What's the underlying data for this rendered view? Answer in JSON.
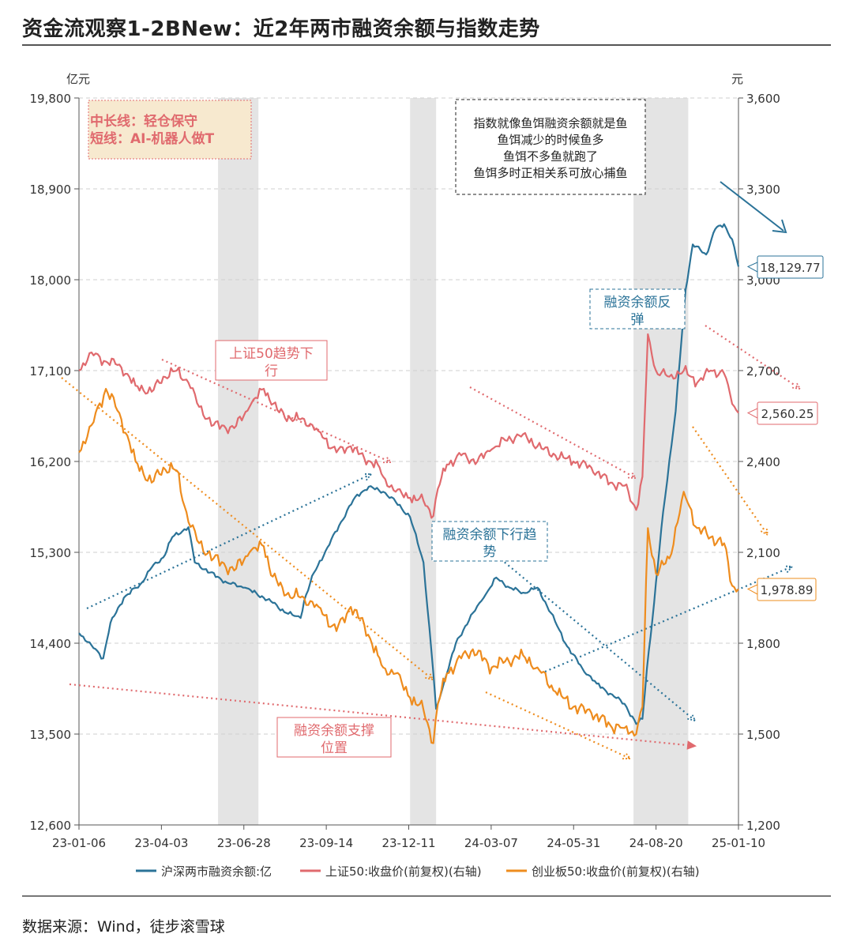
{
  "title": "资金流观察1-2BNew：近2年两市融资余额与指数走势",
  "source": "数据来源：Wind，徒步滚雪球",
  "chart_data": {
    "type": "line",
    "left_axis_unit": "亿元",
    "right_axis_unit": "元",
    "left_ylim": [
      12600,
      19800
    ],
    "left_ticks": [
      "12,600",
      "13,500",
      "14,400",
      "15,300",
      "16,200",
      "17,100",
      "18,000",
      "18,900",
      "19,800"
    ],
    "right_ylim": [
      1200,
      3600
    ],
    "right_ticks": [
      "1,200",
      "1,500",
      "1,800",
      "2,100",
      "2,400",
      "2,700",
      "3,000",
      "3,300",
      "3,600"
    ],
    "x_ticks": [
      "23-01-06",
      "23-04-03",
      "23-06-28",
      "23-09-14",
      "23-12-11",
      "24-03-07",
      "24-05-31",
      "24-08-20",
      "25-01-10"
    ],
    "shaded_periods": [
      [
        "2023-06-10",
        "2023-07-25"
      ],
      [
        "2024-01-10",
        "2024-02-08"
      ],
      [
        "2024-09-15",
        "2024-11-15"
      ]
    ],
    "series": [
      {
        "name": "沪深两市融资余额:亿",
        "axis": "left",
        "color": "#2b7398",
        "points": [
          [
            "2023-01-06",
            14500
          ],
          [
            "2023-01-20",
            14380
          ],
          [
            "2023-02-02",
            14250
          ],
          [
            "2023-02-10",
            14600
          ],
          [
            "2023-02-25",
            14850
          ],
          [
            "2023-03-15",
            14980
          ],
          [
            "2023-03-28",
            15150
          ],
          [
            "2023-04-10",
            15250
          ],
          [
            "2023-04-20",
            15450
          ],
          [
            "2023-05-08",
            15550
          ],
          [
            "2023-05-15",
            15200
          ],
          [
            "2023-06-01",
            15100
          ],
          [
            "2023-06-20",
            15000
          ],
          [
            "2023-07-10",
            14950
          ],
          [
            "2023-07-31",
            14850
          ],
          [
            "2023-08-10",
            14800
          ],
          [
            "2023-08-25",
            14700
          ],
          [
            "2023-09-10",
            14650
          ],
          [
            "2023-09-14",
            14820
          ],
          [
            "2023-09-25",
            15100
          ],
          [
            "2023-10-10",
            15350
          ],
          [
            "2023-10-25",
            15600
          ],
          [
            "2023-11-10",
            15850
          ],
          [
            "2023-11-25",
            15950
          ],
          [
            "2023-12-11",
            15900
          ],
          [
            "2023-12-25",
            15800
          ],
          [
            "2024-01-10",
            15650
          ],
          [
            "2024-01-25",
            15200
          ],
          [
            "2024-02-05",
            14100
          ],
          [
            "2024-02-08",
            13750
          ],
          [
            "2024-02-20",
            14100
          ],
          [
            "2024-03-01",
            14400
          ],
          [
            "2024-03-20",
            14700
          ],
          [
            "2024-04-01",
            14850
          ],
          [
            "2024-04-15",
            15050
          ],
          [
            "2024-04-30",
            14950
          ],
          [
            "2024-05-15",
            14900
          ],
          [
            "2024-05-31",
            14950
          ],
          [
            "2024-06-15",
            14700
          ],
          [
            "2024-07-01",
            14400
          ],
          [
            "2024-07-20",
            14150
          ],
          [
            "2024-08-05",
            14000
          ],
          [
            "2024-08-20",
            13900
          ],
          [
            "2024-09-05",
            13800
          ],
          [
            "2024-09-18",
            13600
          ],
          [
            "2024-09-25",
            13650
          ],
          [
            "2024-09-30",
            14150
          ],
          [
            "2024-10-08",
            14800
          ],
          [
            "2024-10-18",
            15700
          ],
          [
            "2024-11-01",
            16700
          ],
          [
            "2024-11-12",
            17900
          ],
          [
            "2024-11-20",
            18350
          ],
          [
            "2024-12-05",
            18250
          ],
          [
            "2024-12-15",
            18500
          ],
          [
            "2024-12-25",
            18550
          ],
          [
            "2025-01-03",
            18400
          ],
          [
            "2025-01-10",
            18129.77
          ]
        ],
        "last_label": "18,129.77"
      },
      {
        "name": "上证50:收盘价(前复权)(右轴)",
        "axis": "right",
        "color": "#e06a6e",
        "points": [
          [
            "2023-01-06",
            2700
          ],
          [
            "2023-01-20",
            2760
          ],
          [
            "2023-02-05",
            2730
          ],
          [
            "2023-02-20",
            2720
          ],
          [
            "2023-03-10",
            2650
          ],
          [
            "2023-03-28",
            2630
          ],
          [
            "2023-04-10",
            2680
          ],
          [
            "2023-04-25",
            2700
          ],
          [
            "2023-05-08",
            2660
          ],
          [
            "2023-05-20",
            2580
          ],
          [
            "2023-06-05",
            2520
          ],
          [
            "2023-06-28",
            2510
          ],
          [
            "2023-07-15",
            2580
          ],
          [
            "2023-07-31",
            2640
          ],
          [
            "2023-08-15",
            2570
          ],
          [
            "2023-08-30",
            2540
          ],
          [
            "2023-09-14",
            2540
          ],
          [
            "2023-09-30",
            2500
          ],
          [
            "2023-10-20",
            2430
          ],
          [
            "2023-11-05",
            2450
          ],
          [
            "2023-11-20",
            2410
          ],
          [
            "2023-12-05",
            2390
          ],
          [
            "2023-12-11",
            2350
          ],
          [
            "2023-12-25",
            2300
          ],
          [
            "2024-01-10",
            2280
          ],
          [
            "2024-01-25",
            2270
          ],
          [
            "2024-02-05",
            2220
          ],
          [
            "2024-02-10",
            2310
          ],
          [
            "2024-02-20",
            2390
          ],
          [
            "2024-03-07",
            2420
          ],
          [
            "2024-03-25",
            2400
          ],
          [
            "2024-04-10",
            2440
          ],
          [
            "2024-04-25",
            2470
          ],
          [
            "2024-05-15",
            2490
          ],
          [
            "2024-05-31",
            2450
          ],
          [
            "2024-06-20",
            2420
          ],
          [
            "2024-07-10",
            2400
          ],
          [
            "2024-07-30",
            2380
          ],
          [
            "2024-08-20",
            2330
          ],
          [
            "2024-09-05",
            2320
          ],
          [
            "2024-09-18",
            2240
          ],
          [
            "2024-09-25",
            2350
          ],
          [
            "2024-10-01",
            2820
          ],
          [
            "2024-10-10",
            2700
          ],
          [
            "2024-10-25",
            2680
          ],
          [
            "2024-11-10",
            2700
          ],
          [
            "2024-11-25",
            2660
          ],
          [
            "2024-12-10",
            2700
          ],
          [
            "2024-12-25",
            2690
          ],
          [
            "2025-01-03",
            2590
          ],
          [
            "2025-01-10",
            2560.25
          ]
        ],
        "last_label": "2,560.25"
      },
      {
        "name": "创业板50:收盘价(前复权)(右轴)",
        "axis": "right",
        "color": "#ee8c1e",
        "points": [
          [
            "2023-01-06",
            2430
          ],
          [
            "2023-01-20",
            2520
          ],
          [
            "2023-02-05",
            2640
          ],
          [
            "2023-02-20",
            2560
          ],
          [
            "2023-03-10",
            2400
          ],
          [
            "2023-03-28",
            2330
          ],
          [
            "2023-04-10",
            2380
          ],
          [
            "2023-04-25",
            2370
          ],
          [
            "2023-05-08",
            2200
          ],
          [
            "2023-05-20",
            2130
          ],
          [
            "2023-06-05",
            2080
          ],
          [
            "2023-06-28",
            2040
          ],
          [
            "2023-07-15",
            2100
          ],
          [
            "2023-07-31",
            2120
          ],
          [
            "2023-08-10",
            2020
          ],
          [
            "2023-08-25",
            1960
          ],
          [
            "2023-09-14",
            1950
          ],
          [
            "2023-09-30",
            1920
          ],
          [
            "2023-10-20",
            1840
          ],
          [
            "2023-11-05",
            1920
          ],
          [
            "2023-11-20",
            1860
          ],
          [
            "2023-12-05",
            1760
          ],
          [
            "2023-12-11",
            1720
          ],
          [
            "2023-12-25",
            1700
          ],
          [
            "2024-01-10",
            1620
          ],
          [
            "2024-01-25",
            1580
          ],
          [
            "2024-02-05",
            1470
          ],
          [
            "2024-02-10",
            1600
          ],
          [
            "2024-02-20",
            1700
          ],
          [
            "2024-03-07",
            1750
          ],
          [
            "2024-03-20",
            1780
          ],
          [
            "2024-04-10",
            1720
          ],
          [
            "2024-04-25",
            1740
          ],
          [
            "2024-05-15",
            1760
          ],
          [
            "2024-05-31",
            1720
          ],
          [
            "2024-06-20",
            1640
          ],
          [
            "2024-07-10",
            1590
          ],
          [
            "2024-07-30",
            1570
          ],
          [
            "2024-08-20",
            1530
          ],
          [
            "2024-09-05",
            1520
          ],
          [
            "2024-09-18",
            1500
          ],
          [
            "2024-09-25",
            1590
          ],
          [
            "2024-10-01",
            2180
          ],
          [
            "2024-10-10",
            2030
          ],
          [
            "2024-10-25",
            2080
          ],
          [
            "2024-11-10",
            2300
          ],
          [
            "2024-11-25",
            2180
          ],
          [
            "2024-12-10",
            2150
          ],
          [
            "2024-12-25",
            2130
          ],
          [
            "2025-01-03",
            1990
          ],
          [
            "2025-01-10",
            1978.89
          ]
        ],
        "last_label": "1,978.89"
      }
    ],
    "annotations": {
      "strategy_line1": "中长线：轻仓保守",
      "strategy_line2": "短线：AI-机器人做T",
      "note_lines": [
        "指数就像鱼饵融资余额就是鱼",
        "鱼饵减少的时候鱼多",
        "鱼饵不多鱼就跑了",
        "鱼饵多时正相关系可放心捕鱼"
      ],
      "sz50_trend_line1": "上证50趋势下",
      "sz50_trend_line2": "行",
      "margin_down_line1": "融资余额下行趋",
      "margin_down_line2": "势",
      "margin_rebound_line1": "融资余额反",
      "margin_rebound_line2": "弹",
      "margin_support_line1": "融资余额支撑",
      "margin_support_line2": "位置"
    },
    "grid": "horizontal dashed",
    "legend_position": "bottom"
  }
}
